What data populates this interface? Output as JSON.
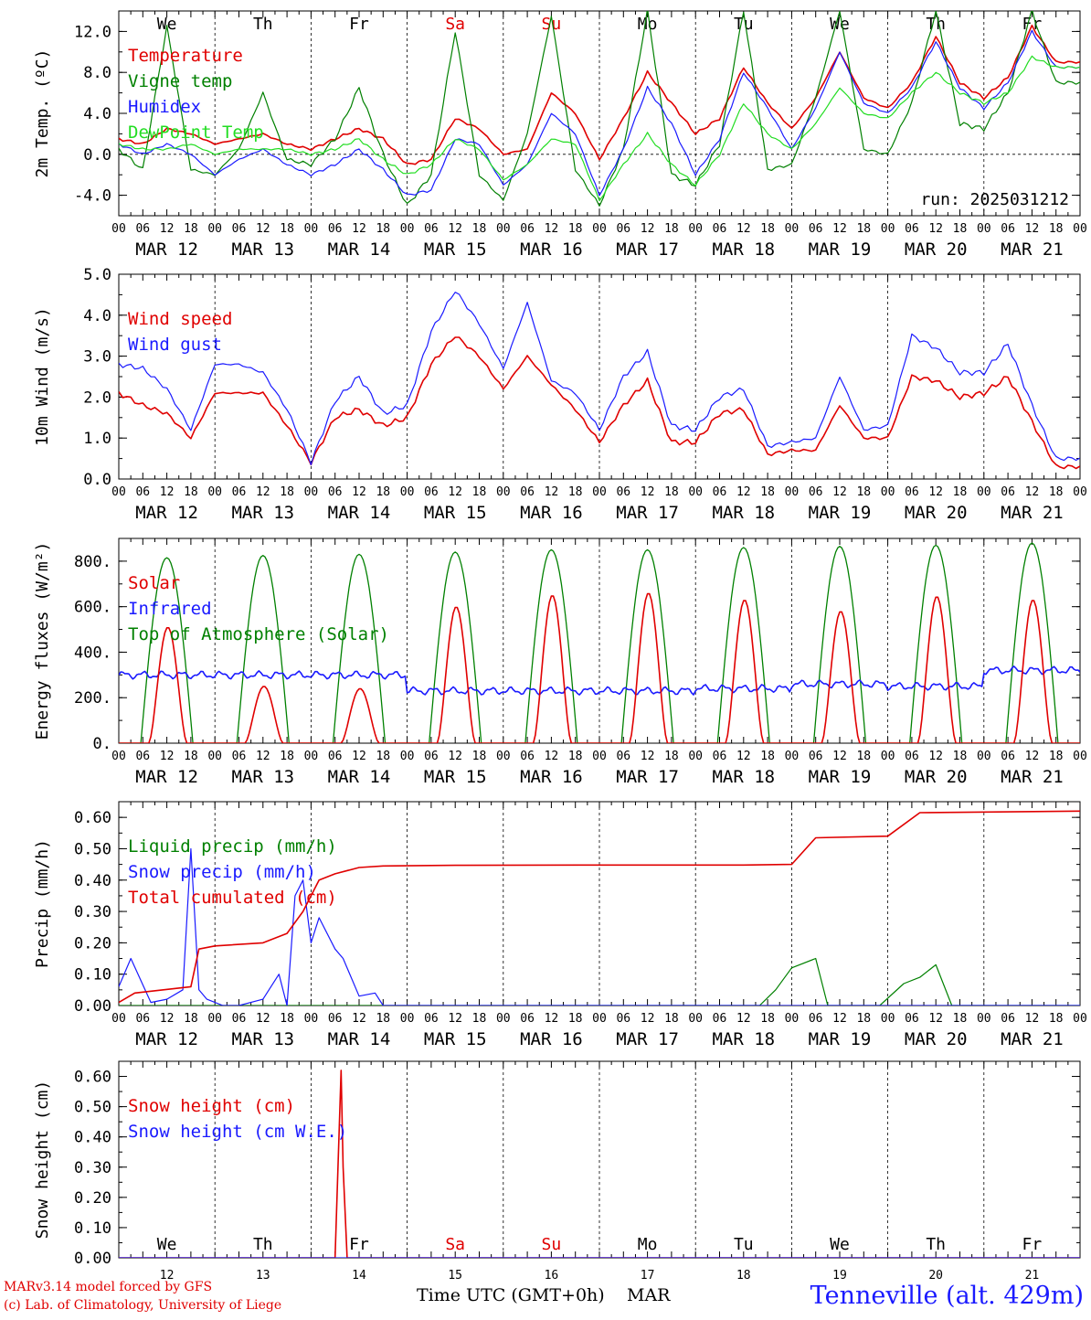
{
  "run_label": "run: 2025031212",
  "days": {
    "weekday_labels": [
      "We",
      "Th",
      "Fr",
      "Sa",
      "Su",
      "Mo",
      "Tu",
      "We",
      "Th",
      "Fr"
    ],
    "weekend_flags": [
      false,
      false,
      false,
      true,
      true,
      false,
      false,
      false,
      false,
      false
    ],
    "date_labels": [
      "MAR 12",
      "MAR 13",
      "MAR 14",
      "MAR 15",
      "MAR 16",
      "MAR 17",
      "MAR 18",
      "MAR 19",
      "MAR 20",
      "MAR 21"
    ],
    "hour_ticks": [
      "00",
      "06",
      "12",
      "18"
    ],
    "final_hour": "00",
    "day_numbers": [
      "12",
      "13",
      "14",
      "15",
      "16",
      "17",
      "18",
      "19",
      "20",
      "21"
    ]
  },
  "colors": {
    "red": "#e00000",
    "green": "#008000",
    "blue": "#1a1aff",
    "lightgreen": "#22dd22"
  },
  "footer": {
    "model_credit": "MARv3.14 model forced by GFS",
    "lab_credit": "(c) Lab. of Climatology, University of Liege",
    "time_axis_label": "Time UTC (GMT+0h)",
    "month_label": "MAR",
    "station": "Tenneville (alt. 429m)"
  },
  "chart_data": [
    {
      "type": "line",
      "ylabel": "2m Temp. (ºC)",
      "ylim": [
        -6,
        14
      ],
      "yticks": [
        -4,
        0,
        4,
        8,
        12
      ],
      "ytick_labels": [
        "-4.0",
        "0.0",
        "4.0",
        "8.0",
        "12.0"
      ],
      "zero_line": true,
      "show_run_label": true,
      "legend_position": "top-left inside",
      "x_unit": "hours since MAR 12 00 UTC",
      "series": [
        {
          "name": "Temperature",
          "color": "red",
          "x": [
            0,
            6,
            12,
            18,
            24,
            30,
            36,
            42,
            48,
            54,
            60,
            66,
            72,
            78,
            84,
            90,
            96,
            102,
            108,
            114,
            120,
            126,
            132,
            138,
            144,
            150,
            156,
            162,
            168,
            174,
            180,
            186,
            192,
            198,
            204,
            210,
            216,
            222,
            228,
            234
          ],
          "y": [
            1.5,
            1.0,
            2.5,
            2.0,
            1.0,
            1.5,
            2.0,
            1.0,
            0.5,
            1.5,
            2.5,
            1.5,
            -1.0,
            -0.5,
            3.5,
            2.5,
            0.0,
            0.5,
            6.0,
            4.0,
            -0.5,
            3.5,
            8.0,
            5.0,
            2.0,
            3.5,
            8.5,
            5.0,
            2.5,
            5.5,
            10.0,
            5.5,
            4.5,
            7.0,
            11.5,
            7.0,
            5.5,
            7.5,
            12.5,
            9.0
          ]
        },
        {
          "name": "Vigne temp",
          "color": "green",
          "x": [
            0,
            6,
            12,
            18,
            24,
            30,
            36,
            42,
            48,
            54,
            60,
            66,
            72,
            78,
            84,
            90,
            96,
            102,
            108,
            114,
            120,
            126,
            132,
            138,
            144,
            150,
            156,
            162,
            168,
            174,
            180,
            186,
            192,
            198,
            204,
            210,
            216,
            222,
            228,
            234
          ],
          "y": [
            0.5,
            -1.5,
            12.5,
            -1.5,
            -2.0,
            0.5,
            6.0,
            -0.5,
            -1.0,
            1.5,
            6.5,
            0.0,
            -5.0,
            -2.0,
            12.0,
            -2.0,
            -4.5,
            2.0,
            13.5,
            -1.5,
            -5.0,
            0.5,
            14.0,
            -2.0,
            -3.0,
            1.0,
            14.0,
            -1.5,
            -1.0,
            5.5,
            14.0,
            0.5,
            0.0,
            5.0,
            14.0,
            3.0,
            2.5,
            6.0,
            14.0,
            7.0
          ]
        },
        {
          "name": "Humidex",
          "color": "blue",
          "x": [
            0,
            6,
            12,
            18,
            24,
            30,
            36,
            42,
            48,
            54,
            60,
            66,
            72,
            78,
            84,
            90,
            96,
            102,
            108,
            114,
            120,
            126,
            132,
            138,
            144,
            150,
            156,
            162,
            168,
            174,
            180,
            186,
            192,
            198,
            204,
            210,
            216,
            222,
            228,
            234
          ],
          "y": [
            1.0,
            0.0,
            1.0,
            0.0,
            -2.0,
            -0.5,
            0.5,
            -1.0,
            -2.0,
            -1.0,
            0.5,
            -1.5,
            -4.0,
            -3.5,
            1.5,
            1.0,
            -3.0,
            -1.0,
            4.0,
            2.0,
            -4.0,
            0.5,
            6.5,
            3.0,
            -2.0,
            1.5,
            8.0,
            4.5,
            0.5,
            4.5,
            10.0,
            5.0,
            4.0,
            6.5,
            11.0,
            6.5,
            4.5,
            7.0,
            12.0,
            8.5
          ]
        },
        {
          "name": "DewPoint Temp",
          "color": "lightgreen",
          "x": [
            0,
            6,
            12,
            18,
            24,
            30,
            36,
            42,
            48,
            54,
            60,
            66,
            72,
            78,
            84,
            90,
            96,
            102,
            108,
            114,
            120,
            126,
            132,
            138,
            144,
            150,
            156,
            162,
            168,
            174,
            180,
            186,
            192,
            198,
            204,
            210,
            216,
            222,
            228,
            234
          ],
          "y": [
            1.0,
            0.5,
            0.5,
            1.0,
            0.0,
            0.5,
            0.5,
            0.5,
            0.0,
            0.5,
            1.5,
            -0.5,
            -2.0,
            -1.0,
            1.5,
            0.5,
            -2.5,
            -1.0,
            1.5,
            1.0,
            -4.5,
            -1.0,
            2.0,
            -1.0,
            -3.0,
            0.0,
            5.0,
            2.0,
            0.5,
            3.0,
            6.5,
            4.0,
            3.5,
            6.0,
            8.0,
            6.0,
            5.0,
            6.0,
            9.5,
            8.5
          ]
        }
      ]
    },
    {
      "type": "line",
      "ylabel": "10m Wind (m/s)",
      "ylim": [
        0,
        5
      ],
      "yticks": [
        0,
        1,
        2,
        3,
        4,
        5
      ],
      "ytick_labels": [
        "0.0",
        "1.0",
        "2.0",
        "3.0",
        "4.0",
        "5.0"
      ],
      "legend_position": "top-left inside",
      "series": [
        {
          "name": "Wind speed",
          "color": "red",
          "x": [
            0,
            6,
            12,
            18,
            24,
            30,
            36,
            42,
            48,
            54,
            60,
            66,
            72,
            78,
            84,
            90,
            96,
            102,
            108,
            114,
            120,
            126,
            132,
            138,
            144,
            150,
            156,
            162,
            168,
            174,
            180,
            186,
            192,
            198,
            204,
            210,
            216,
            222,
            228,
            234
          ],
          "y": [
            2.1,
            1.8,
            1.6,
            1.0,
            2.1,
            2.1,
            2.1,
            1.3,
            0.4,
            1.5,
            1.7,
            1.3,
            1.5,
            2.8,
            3.5,
            3.0,
            2.2,
            3.0,
            2.3,
            1.7,
            0.9,
            1.8,
            2.4,
            0.9,
            0.9,
            1.6,
            1.7,
            0.6,
            0.7,
            0.7,
            1.8,
            1.0,
            1.0,
            2.5,
            2.4,
            2.0,
            2.1,
            2.5,
            1.4,
            0.3
          ]
        },
        {
          "name": "Wind gust",
          "color": "blue",
          "x": [
            0,
            6,
            12,
            18,
            24,
            30,
            36,
            42,
            48,
            54,
            60,
            66,
            72,
            78,
            84,
            90,
            96,
            102,
            108,
            114,
            120,
            126,
            132,
            138,
            144,
            150,
            156,
            162,
            168,
            174,
            180,
            186,
            192,
            198,
            204,
            210,
            216,
            222,
            228,
            234
          ],
          "y": [
            2.8,
            2.7,
            2.2,
            1.2,
            2.8,
            2.8,
            2.6,
            1.7,
            0.4,
            1.9,
            2.5,
            1.6,
            1.8,
            3.6,
            4.6,
            3.8,
            2.7,
            4.3,
            2.4,
            2.1,
            1.2,
            2.5,
            3.1,
            1.3,
            1.2,
            2.0,
            2.2,
            0.8,
            0.9,
            1.0,
            2.5,
            1.2,
            1.3,
            3.5,
            3.2,
            2.6,
            2.6,
            3.3,
            1.8,
            0.5
          ]
        }
      ]
    },
    {
      "type": "line",
      "ylabel": "Energy fluxes (W/m²)",
      "ylim": [
        0,
        900
      ],
      "yticks": [
        0,
        200,
        400,
        600,
        800
      ],
      "ytick_labels": [
        "0.",
        "200.",
        "400.",
        "600.",
        "800."
      ],
      "legend_position": "top-left inside",
      "day_peaks": {
        "solar": [
          510,
          250,
          240,
          600,
          650,
          660,
          630,
          580,
          645,
          630
        ],
        "top_of_atmosphere": [
          815,
          825,
          830,
          840,
          850,
          850,
          860,
          865,
          870,
          880
        ],
        "infrared": [
          300,
          300,
          300,
          230,
          230,
          230,
          240,
          260,
          250,
          320
        ]
      },
      "series": [
        {
          "name": "Solar",
          "color": "red"
        },
        {
          "name": "Infrared",
          "color": "blue"
        },
        {
          "name": "Top of Atmosphere (Solar)",
          "color": "green"
        }
      ]
    },
    {
      "type": "line",
      "ylabel": "Precip (mm/h)",
      "ylim": [
        0,
        0.65
      ],
      "yticks": [
        0,
        0.1,
        0.2,
        0.3,
        0.4,
        0.5,
        0.6
      ],
      "ytick_labels": [
        "0.00",
        "0.10",
        "0.20",
        "0.30",
        "0.40",
        "0.50",
        "0.60"
      ],
      "legend_position": "top-left inside",
      "series": [
        {
          "name": "Liquid precip (mm/h)",
          "color": "green",
          "x": [
            0,
            160,
            164,
            168,
            174,
            177,
            180,
            190,
            196,
            200,
            204,
            208,
            212,
            240
          ],
          "y": [
            0,
            0,
            0.05,
            0.12,
            0.15,
            0.0,
            0,
            0,
            0.07,
            0.09,
            0.13,
            0.0,
            0,
            0
          ]
        },
        {
          "name": "Snow precip (mm/h)",
          "color": "blue",
          "x": [
            0,
            3,
            8,
            12,
            16,
            18,
            20,
            22,
            26,
            30,
            36,
            40,
            42,
            44,
            46,
            48,
            50,
            54,
            56,
            60,
            64,
            66,
            70,
            240
          ],
          "y": [
            0.06,
            0.15,
            0.01,
            0.02,
            0.05,
            0.5,
            0.05,
            0.02,
            0.0,
            0.0,
            0.02,
            0.1,
            0.0,
            0.35,
            0.4,
            0.2,
            0.28,
            0.18,
            0.15,
            0.03,
            0.04,
            0.0,
            0,
            0
          ]
        },
        {
          "name": "Total cumulated (cm)",
          "color": "red",
          "x": [
            0,
            4,
            18,
            20,
            24,
            36,
            42,
            46,
            50,
            54,
            60,
            66,
            84,
            120,
            156,
            168,
            174,
            192,
            200,
            240
          ],
          "y": [
            0.01,
            0.04,
            0.06,
            0.18,
            0.19,
            0.2,
            0.23,
            0.3,
            0.4,
            0.42,
            0.44,
            0.445,
            0.447,
            0.448,
            0.448,
            0.45,
            0.535,
            0.54,
            0.615,
            0.62
          ]
        }
      ]
    },
    {
      "type": "line",
      "ylabel": "Snow height (cm)",
      "ylim": [
        0,
        0.65
      ],
      "yticks": [
        0,
        0.1,
        0.2,
        0.3,
        0.4,
        0.5,
        0.6
      ],
      "ytick_labels": [
        "0.00",
        "0.10",
        "0.20",
        "0.30",
        "0.40",
        "0.50",
        "0.60"
      ],
      "legend_position": "top-left inside",
      "show_weekdays_bottom": true,
      "series": [
        {
          "name": "Snow height (cm)",
          "color": "red",
          "x": [
            0,
            54,
            55.5,
            56,
            57,
            240
          ],
          "y": [
            0,
            0,
            0.62,
            0.3,
            0,
            0
          ]
        },
        {
          "name": "Snow height (cm W.E.)",
          "color": "blue",
          "x": [
            0,
            240
          ],
          "y": [
            0,
            0
          ]
        }
      ]
    }
  ]
}
